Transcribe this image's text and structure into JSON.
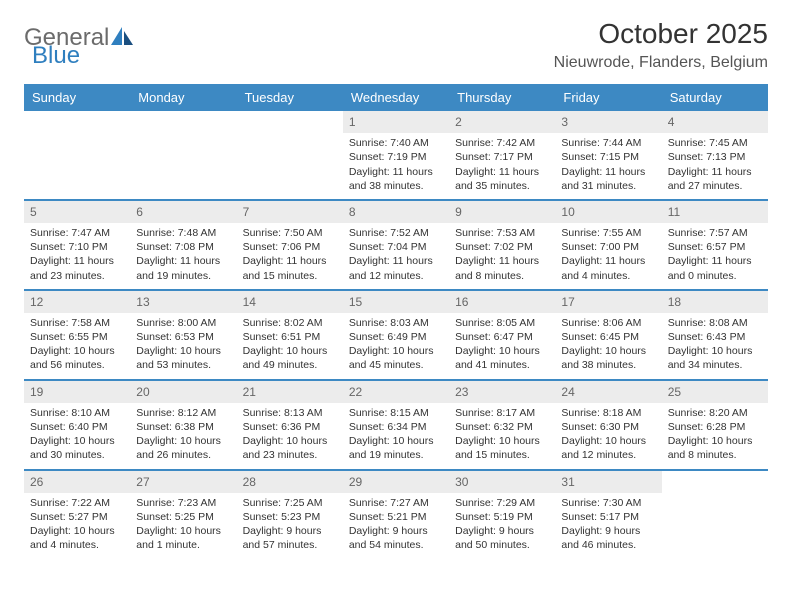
{
  "brand": {
    "name_gray": "General",
    "name_blue": "Blue"
  },
  "title": "October 2025",
  "location": "Nieuwrode, Flanders, Belgium",
  "colors": {
    "header_bar": "#3d89c3",
    "daynum_bg": "#ececec",
    "text": "#333333",
    "logo_gray": "#6b6b6b",
    "logo_blue": "#2f7fbf"
  },
  "daysOfWeek": [
    "Sunday",
    "Monday",
    "Tuesday",
    "Wednesday",
    "Thursday",
    "Friday",
    "Saturday"
  ],
  "weeks": [
    [
      {
        "n": "",
        "sr": "",
        "ss": "",
        "dl": ""
      },
      {
        "n": "",
        "sr": "",
        "ss": "",
        "dl": ""
      },
      {
        "n": "",
        "sr": "",
        "ss": "",
        "dl": ""
      },
      {
        "n": "1",
        "sr": "Sunrise: 7:40 AM",
        "ss": "Sunset: 7:19 PM",
        "dl": "Daylight: 11 hours and 38 minutes."
      },
      {
        "n": "2",
        "sr": "Sunrise: 7:42 AM",
        "ss": "Sunset: 7:17 PM",
        "dl": "Daylight: 11 hours and 35 minutes."
      },
      {
        "n": "3",
        "sr": "Sunrise: 7:44 AM",
        "ss": "Sunset: 7:15 PM",
        "dl": "Daylight: 11 hours and 31 minutes."
      },
      {
        "n": "4",
        "sr": "Sunrise: 7:45 AM",
        "ss": "Sunset: 7:13 PM",
        "dl": "Daylight: 11 hours and 27 minutes."
      }
    ],
    [
      {
        "n": "5",
        "sr": "Sunrise: 7:47 AM",
        "ss": "Sunset: 7:10 PM",
        "dl": "Daylight: 11 hours and 23 minutes."
      },
      {
        "n": "6",
        "sr": "Sunrise: 7:48 AM",
        "ss": "Sunset: 7:08 PM",
        "dl": "Daylight: 11 hours and 19 minutes."
      },
      {
        "n": "7",
        "sr": "Sunrise: 7:50 AM",
        "ss": "Sunset: 7:06 PM",
        "dl": "Daylight: 11 hours and 15 minutes."
      },
      {
        "n": "8",
        "sr": "Sunrise: 7:52 AM",
        "ss": "Sunset: 7:04 PM",
        "dl": "Daylight: 11 hours and 12 minutes."
      },
      {
        "n": "9",
        "sr": "Sunrise: 7:53 AM",
        "ss": "Sunset: 7:02 PM",
        "dl": "Daylight: 11 hours and 8 minutes."
      },
      {
        "n": "10",
        "sr": "Sunrise: 7:55 AM",
        "ss": "Sunset: 7:00 PM",
        "dl": "Daylight: 11 hours and 4 minutes."
      },
      {
        "n": "11",
        "sr": "Sunrise: 7:57 AM",
        "ss": "Sunset: 6:57 PM",
        "dl": "Daylight: 11 hours and 0 minutes."
      }
    ],
    [
      {
        "n": "12",
        "sr": "Sunrise: 7:58 AM",
        "ss": "Sunset: 6:55 PM",
        "dl": "Daylight: 10 hours and 56 minutes."
      },
      {
        "n": "13",
        "sr": "Sunrise: 8:00 AM",
        "ss": "Sunset: 6:53 PM",
        "dl": "Daylight: 10 hours and 53 minutes."
      },
      {
        "n": "14",
        "sr": "Sunrise: 8:02 AM",
        "ss": "Sunset: 6:51 PM",
        "dl": "Daylight: 10 hours and 49 minutes."
      },
      {
        "n": "15",
        "sr": "Sunrise: 8:03 AM",
        "ss": "Sunset: 6:49 PM",
        "dl": "Daylight: 10 hours and 45 minutes."
      },
      {
        "n": "16",
        "sr": "Sunrise: 8:05 AM",
        "ss": "Sunset: 6:47 PM",
        "dl": "Daylight: 10 hours and 41 minutes."
      },
      {
        "n": "17",
        "sr": "Sunrise: 8:06 AM",
        "ss": "Sunset: 6:45 PM",
        "dl": "Daylight: 10 hours and 38 minutes."
      },
      {
        "n": "18",
        "sr": "Sunrise: 8:08 AM",
        "ss": "Sunset: 6:43 PM",
        "dl": "Daylight: 10 hours and 34 minutes."
      }
    ],
    [
      {
        "n": "19",
        "sr": "Sunrise: 8:10 AM",
        "ss": "Sunset: 6:40 PM",
        "dl": "Daylight: 10 hours and 30 minutes."
      },
      {
        "n": "20",
        "sr": "Sunrise: 8:12 AM",
        "ss": "Sunset: 6:38 PM",
        "dl": "Daylight: 10 hours and 26 minutes."
      },
      {
        "n": "21",
        "sr": "Sunrise: 8:13 AM",
        "ss": "Sunset: 6:36 PM",
        "dl": "Daylight: 10 hours and 23 minutes."
      },
      {
        "n": "22",
        "sr": "Sunrise: 8:15 AM",
        "ss": "Sunset: 6:34 PM",
        "dl": "Daylight: 10 hours and 19 minutes."
      },
      {
        "n": "23",
        "sr": "Sunrise: 8:17 AM",
        "ss": "Sunset: 6:32 PM",
        "dl": "Daylight: 10 hours and 15 minutes."
      },
      {
        "n": "24",
        "sr": "Sunrise: 8:18 AM",
        "ss": "Sunset: 6:30 PM",
        "dl": "Daylight: 10 hours and 12 minutes."
      },
      {
        "n": "25",
        "sr": "Sunrise: 8:20 AM",
        "ss": "Sunset: 6:28 PM",
        "dl": "Daylight: 10 hours and 8 minutes."
      }
    ],
    [
      {
        "n": "26",
        "sr": "Sunrise: 7:22 AM",
        "ss": "Sunset: 5:27 PM",
        "dl": "Daylight: 10 hours and 4 minutes."
      },
      {
        "n": "27",
        "sr": "Sunrise: 7:23 AM",
        "ss": "Sunset: 5:25 PM",
        "dl": "Daylight: 10 hours and 1 minute."
      },
      {
        "n": "28",
        "sr": "Sunrise: 7:25 AM",
        "ss": "Sunset: 5:23 PM",
        "dl": "Daylight: 9 hours and 57 minutes."
      },
      {
        "n": "29",
        "sr": "Sunrise: 7:27 AM",
        "ss": "Sunset: 5:21 PM",
        "dl": "Daylight: 9 hours and 54 minutes."
      },
      {
        "n": "30",
        "sr": "Sunrise: 7:29 AM",
        "ss": "Sunset: 5:19 PM",
        "dl": "Daylight: 9 hours and 50 minutes."
      },
      {
        "n": "31",
        "sr": "Sunrise: 7:30 AM",
        "ss": "Sunset: 5:17 PM",
        "dl": "Daylight: 9 hours and 46 minutes."
      },
      {
        "n": "",
        "sr": "",
        "ss": "",
        "dl": ""
      }
    ]
  ]
}
